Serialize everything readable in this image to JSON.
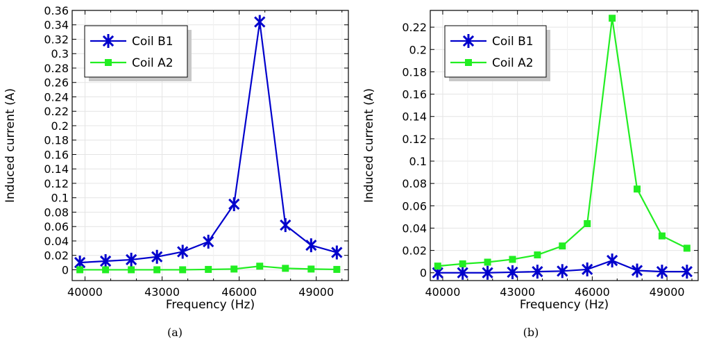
{
  "chart_data": [
    {
      "type": "line",
      "caption": "(a)",
      "xlabel": "Frequency (Hz)",
      "ylabel": "Induced current (A)",
      "xlim": [
        39500,
        50250
      ],
      "ylim": [
        -0.015,
        0.36
      ],
      "xticks": [
        40000,
        43000,
        46000,
        49000
      ],
      "yticks": [
        0,
        0.02,
        0.04,
        0.06,
        0.08,
        0.1,
        0.12,
        0.14,
        0.16,
        0.18,
        0.2,
        0.22,
        0.24,
        0.26,
        0.28,
        0.3,
        0.32,
        0.34,
        0.36
      ],
      "ytick_labels": [
        "0",
        "0.02",
        "0.04",
        "0.06",
        "0.08",
        "0.1",
        "0.12",
        "0.14",
        "0.16",
        "0.18",
        "0.2",
        "0.22",
        "0.24",
        "0.26",
        "0.28",
        "0.3",
        "0.32",
        "0.34",
        "0.36"
      ],
      "grid": true,
      "legend_position": "top-left",
      "x": [
        39800,
        40800,
        41800,
        42800,
        43800,
        44800,
        45800,
        46800,
        47800,
        48800,
        49800
      ],
      "series": [
        {
          "name": "Coil B1",
          "color": "#0000cc",
          "marker": "asterisk",
          "values": [
            0.01,
            0.012,
            0.014,
            0.018,
            0.025,
            0.039,
            0.091,
            0.344,
            0.062,
            0.034,
            0.024
          ]
        },
        {
          "name": "Coil A2",
          "color": "#22ee22",
          "marker": "square",
          "values": [
            0.0,
            0.0,
            0.0,
            0.0,
            0.0,
            0.0005,
            0.001,
            0.005,
            0.002,
            0.001,
            0.0005
          ]
        }
      ]
    },
    {
      "type": "line",
      "caption": "(b)",
      "xlabel": "Frequency (Hz)",
      "ylabel": "Induced current (A)",
      "xlim": [
        39500,
        50250
      ],
      "ylim": [
        -0.007,
        0.235
      ],
      "xticks": [
        40000,
        43000,
        46000,
        49000
      ],
      "yticks": [
        0,
        0.02,
        0.04,
        0.06,
        0.08,
        0.1,
        0.12,
        0.14,
        0.16,
        0.18,
        0.2,
        0.22
      ],
      "ytick_labels": [
        "0",
        "0.02",
        "0.04",
        "0.06",
        "0.08",
        "0.1",
        "0.12",
        "0.14",
        "0.16",
        "0.18",
        "0.2",
        "0.22"
      ],
      "grid": true,
      "legend_position": "top-left",
      "x": [
        39800,
        40800,
        41800,
        42800,
        43800,
        44800,
        45800,
        46800,
        47800,
        48800,
        49800
      ],
      "series": [
        {
          "name": "Coil B1",
          "color": "#0000cc",
          "marker": "asterisk",
          "values": [
            0.0,
            0.0,
            0.0,
            0.0005,
            0.001,
            0.0015,
            0.003,
            0.011,
            0.002,
            0.001,
            0.001
          ]
        },
        {
          "name": "Coil A2",
          "color": "#22ee22",
          "marker": "square",
          "values": [
            0.006,
            0.008,
            0.0095,
            0.012,
            0.016,
            0.024,
            0.044,
            0.228,
            0.075,
            0.033,
            0.022
          ]
        }
      ]
    }
  ]
}
